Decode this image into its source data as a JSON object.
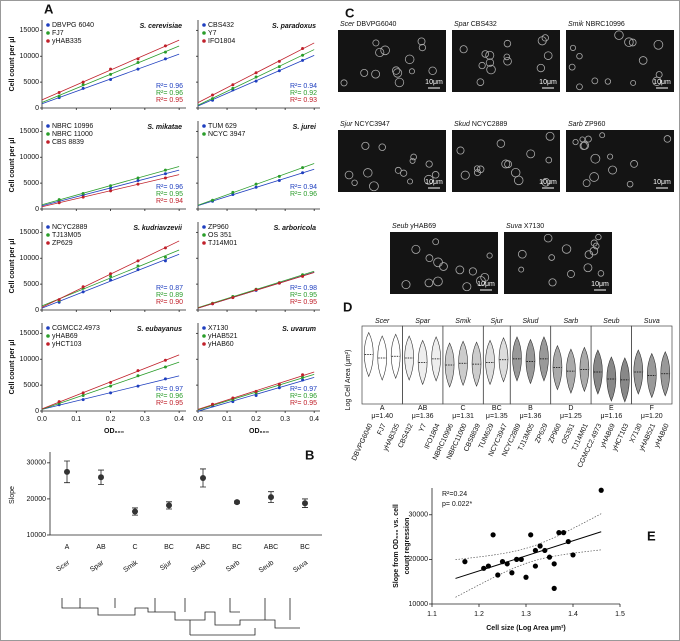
{
  "chart_data": [
    {
      "type": "scatter",
      "label": "A",
      "xlabel": "OD₆₀₀",
      "ylabel": "Cell count per μl",
      "xlim": [
        0,
        0.42
      ],
      "xticks": [
        {
          "value": 0,
          "label": "0.0"
        },
        0.1,
        0.2,
        0.3,
        0.4
      ],
      "ylim": [
        0,
        17000
      ],
      "yticks": [
        0,
        5000,
        10000,
        15000
      ],
      "x": [
        0.05,
        0.12,
        0.2,
        0.28,
        0.36
      ],
      "panels": [
        {
          "title": "S. cerevisiae",
          "series": [
            {
              "name": "DBVPG 6040",
              "color": "#1f3fbf",
              "values": [
                2000,
                3800,
                5500,
                7500,
                9500
              ],
              "annotation": "R²= 0.96"
            },
            {
              "name": "FJ7",
              "color": "#2a9d2a",
              "values": [
                2300,
                4500,
                6500,
                8800,
                10800
              ],
              "annotation": "R²= 0.96"
            },
            {
              "name": "yHAB335",
              "color": "#c0202a",
              "values": [
                3000,
                5000,
                7500,
                9500,
                12000
              ],
              "annotation": "R²= 0.95"
            }
          ]
        },
        {
          "title": "S. paradoxus",
          "series": [
            {
              "name": "CBS432",
              "color": "#1f3fbf",
              "values": [
                1500,
                3500,
                5200,
                7200,
                9200
              ],
              "annotation": "R²= 0.94"
            },
            {
              "name": "Y7",
              "color": "#2a9d2a",
              "values": [
                1800,
                3800,
                6000,
                8000,
                10200
              ],
              "annotation": "R²= 0.92"
            },
            {
              "name": "IFO1804",
              "color": "#c0202a",
              "values": [
                2500,
                4500,
                6800,
                9000,
                11500
              ],
              "annotation": "R²= 0.93"
            }
          ]
        },
        {
          "title": "S. mikatae",
          "series": [
            {
              "name": "NBRC 10996",
              "color": "#1f3fbf",
              "values": [
                1500,
                2700,
                4000,
                5500,
                6800
              ],
              "annotation": "R²= 0.96"
            },
            {
              "name": "NBRC 11000",
              "color": "#2a9d2a",
              "values": [
                1800,
                3000,
                4500,
                6000,
                7500
              ],
              "annotation": "R²= 0.95"
            },
            {
              "name": "CBS 8839",
              "color": "#c0202a",
              "values": [
                1200,
                2300,
                3500,
                4800,
                6000
              ],
              "annotation": "R²= 0.94"
            }
          ]
        },
        {
          "title": "S. jurei",
          "series": [
            {
              "name": "TUM 629",
              "color": "#1f3fbf",
              "values": [
                1500,
                2800,
                4200,
                5500,
                7000
              ],
              "annotation": "R²= 0.94"
            },
            {
              "name": "NCYC 3947",
              "color": "#2a9d2a",
              "values": [
                1700,
                3200,
                4800,
                6300,
                8000
              ],
              "annotation": "R²= 0.96"
            }
          ]
        },
        {
          "title": "S. kudriavzevii",
          "series": [
            {
              "name": "NCYC2889",
              "color": "#1f3fbf",
              "values": [
                1500,
                3500,
                5800,
                7800,
                9500
              ],
              "annotation": "R²= 0.87"
            },
            {
              "name": "TJ13M05",
              "color": "#2a9d2a",
              "values": [
                1800,
                4200,
                6500,
                8500,
                10200
              ],
              "annotation": "R²= 0.89"
            },
            {
              "name": "ZP629",
              "color": "#c0202a",
              "values": [
                2000,
                4500,
                7000,
                9500,
                12000
              ],
              "annotation": "R²= 0.90"
            }
          ]
        },
        {
          "title": "S. arboricola",
          "series": [
            {
              "name": "ZP960",
              "color": "#1f3fbf",
              "values": [
                1200,
                2500,
                3800,
                5200,
                6600
              ],
              "annotation": "R²= 0.98"
            },
            {
              "name": "OS 351",
              "color": "#2a9d2a",
              "values": [
                1300,
                2600,
                4000,
                5300,
                6800
              ],
              "annotation": "R²= 0.95"
            },
            {
              "name": "TJ14M01",
              "color": "#c0202a",
              "values": [
                1200,
                2400,
                3900,
                5200,
                6500
              ],
              "annotation": "R²= 0.95"
            }
          ]
        },
        {
          "title": "S. eubayanus",
          "series": [
            {
              "name": "CGMCC2.4973",
              "color": "#1f3fbf",
              "values": [
                1200,
                2200,
                3500,
                4800,
                6200
              ],
              "annotation": "R²= 0.97"
            },
            {
              "name": "yHAB69",
              "color": "#2a9d2a",
              "values": [
                1500,
                3000,
                4800,
                6800,
                8500
              ],
              "annotation": "R²= 0.96"
            },
            {
              "name": "yHCT103",
              "color": "#c0202a",
              "values": [
                1800,
                3500,
                5500,
                7800,
                9800
              ],
              "annotation": "R²= 0.95"
            }
          ]
        },
        {
          "title": "S. uvarum",
          "series": [
            {
              "name": "X7130",
              "color": "#1f3fbf",
              "values": [
                1000,
                1800,
                3000,
                4500,
                6000
              ],
              "annotation": "R²= 0.97"
            },
            {
              "name": "yHAB521",
              "color": "#2a9d2a",
              "values": [
                1200,
                2200,
                3500,
                5000,
                6500
              ],
              "annotation": "R²= 0.96"
            },
            {
              "name": "yHAB60",
              "color": "#c0202a",
              "values": [
                1300,
                2500,
                3800,
                5200,
                7000
              ],
              "annotation": "R²= 0.95"
            }
          ]
        }
      ]
    },
    {
      "type": "errorbar",
      "label": "B",
      "ylabel": "Slope",
      "categories": [
        "Scer",
        "Spar",
        "Smik",
        "Sjur",
        "Skud",
        "Sarb",
        "Seub",
        "Suva"
      ],
      "values": [
        27500,
        26000,
        16500,
        18200,
        25800,
        19100,
        20500,
        18800
      ],
      "errors": [
        3000,
        2000,
        1000,
        1000,
        2500,
        300,
        1500,
        1200
      ],
      "letters": [
        "A",
        "AB",
        "C",
        "BC",
        "ABC",
        "BC",
        "ABC",
        "BC"
      ],
      "ylim": [
        10000,
        33000
      ],
      "yticks": [
        10000,
        20000,
        30000
      ]
    },
    {
      "type": "violin",
      "label": "D",
      "ylabel": "Log Cell Area (μm²)",
      "ylim": [
        0.9,
        1.7
      ],
      "groups": [
        {
          "name": "Scer",
          "letter": "A",
          "mean": 1.4,
          "mean_label": "μ=1.40",
          "color": "#ffffff",
          "strains": [
            "DBVPG6040",
            "FJ7",
            "yHAB335"
          ],
          "values": [
            1.42,
            1.38,
            1.4
          ]
        },
        {
          "name": "Spar",
          "letter": "AB",
          "mean": 1.36,
          "mean_label": "μ=1.36",
          "color": "#eeeeee",
          "strains": [
            "CBS432",
            "Y7",
            "IFO1804"
          ],
          "values": [
            1.38,
            1.33,
            1.37
          ]
        },
        {
          "name": "Smik",
          "letter": "C",
          "mean": 1.31,
          "mean_label": "μ=1.31",
          "color": "#cccccc",
          "strains": [
            "NBRC10996",
            "NBRC11000",
            "CBS8839"
          ],
          "values": [
            1.3,
            1.32,
            1.31
          ]
        },
        {
          "name": "Sjur",
          "letter": "BC",
          "mean": 1.35,
          "mean_label": "μ=1.35",
          "color": "#dddddd",
          "strains": [
            "TUM629",
            "NCYC3947"
          ],
          "values": [
            1.33,
            1.36
          ]
        },
        {
          "name": "Skud",
          "letter": "B",
          "mean": 1.36,
          "mean_label": "μ=1.36",
          "color": "#999999",
          "strains": [
            "NCYC2889",
            "TJ13M05",
            "ZP629"
          ],
          "values": [
            1.37,
            1.34,
            1.37
          ]
        },
        {
          "name": "Sarb",
          "letter": "D",
          "mean": 1.25,
          "mean_label": "μ=1.25",
          "color": "#aaaaaa",
          "strains": [
            "ZP960",
            "OS351",
            "TJ14M01"
          ],
          "values": [
            1.27,
            1.23,
            1.25
          ]
        },
        {
          "name": "Seub",
          "letter": "E",
          "mean": 1.16,
          "mean_label": "μ=1.16",
          "color": "#888888",
          "strains": [
            "CGMCC2.4973",
            "yHAB69",
            "yHCT103"
          ],
          "values": [
            1.22,
            1.14,
            1.13
          ]
        },
        {
          "name": "Suva",
          "letter": "F",
          "mean": 1.2,
          "mean_label": "μ=1.20",
          "color": "#999999",
          "strains": [
            "X7130",
            "yHAB521",
            "yHAB60"
          ],
          "values": [
            1.22,
            1.18,
            1.2
          ]
        }
      ]
    },
    {
      "type": "scatter",
      "label": "E",
      "xlabel": "Cell size (Log Area μm²)",
      "ylabel": [
        "Slope from OD₆₀₀ vs. cell",
        "count regression"
      ],
      "annotations": [
        "R²=0.24",
        "p= 0.022*"
      ],
      "xlim": [
        1.1,
        1.5
      ],
      "xticks": [
        1.1,
        1.2,
        1.3,
        1.4,
        1.5
      ],
      "ylim": [
        10000,
        36000
      ],
      "yticks": [
        10000,
        20000,
        30000
      ],
      "x": [
        1.17,
        1.21,
        1.22,
        1.23,
        1.24,
        1.25,
        1.26,
        1.27,
        1.29,
        1.3,
        1.31,
        1.32,
        1.33,
        1.34,
        1.35,
        1.36,
        1.37,
        1.38,
        1.39,
        1.4,
        1.46,
        1.32,
        1.28,
        1.36
      ],
      "values": [
        19500,
        18000,
        18500,
        25500,
        16500,
        19500,
        19000,
        17000,
        20000,
        16000,
        25500,
        22000,
        23000,
        22000,
        20500,
        13500,
        26000,
        26000,
        24000,
        21000,
        35500,
        18500,
        20000,
        19000
      ]
    }
  ],
  "images": {
    "label": "C",
    "scale_label": "10μm",
    "items": [
      {
        "species": "Scer",
        "strain": " DBVPG6040"
      },
      {
        "species": "Spar",
        "strain": " CBS432"
      },
      {
        "species": "Smik",
        "strain": " NBRC10996"
      },
      {
        "species": "Sjur",
        "strain": " NCYC3947"
      },
      {
        "species": "Skud",
        "strain": " NCYC2889"
      },
      {
        "species": "Sarb",
        "strain": " ZP960"
      },
      {
        "species": "Seub",
        "strain": " yHAB69"
      },
      {
        "species": "Suva",
        "strain": " X7130"
      }
    ]
  }
}
